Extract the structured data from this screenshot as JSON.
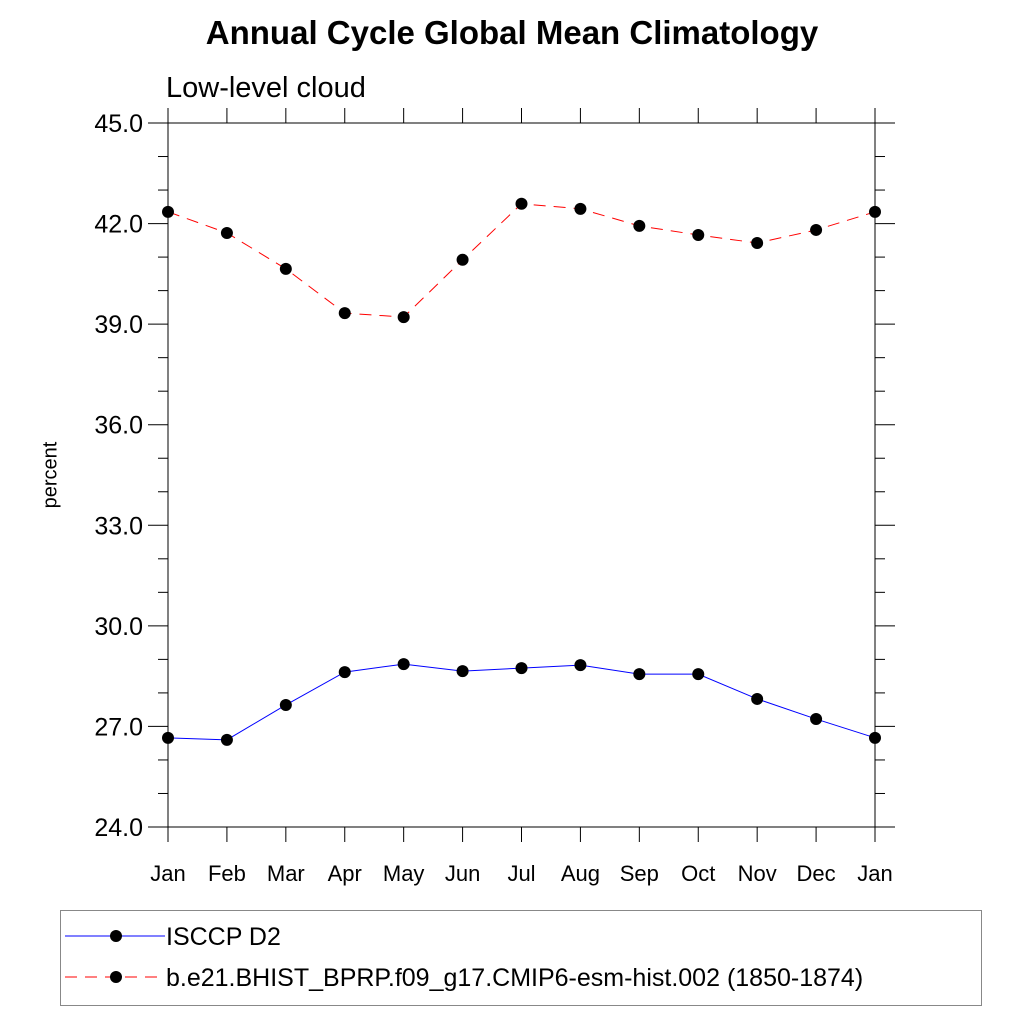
{
  "chart_data": {
    "type": "line",
    "title": "Annual Cycle Global Mean Climatology",
    "subtitle": "Low-level cloud",
    "xlabel": "",
    "ylabel": "percent",
    "categories": [
      "Jan",
      "Feb",
      "Mar",
      "Apr",
      "May",
      "Jun",
      "Jul",
      "Aug",
      "Sep",
      "Oct",
      "Nov",
      "Dec",
      "Jan"
    ],
    "ylim": [
      24.0,
      45.0
    ],
    "yticks": [
      "24.0",
      "27.0",
      "30.0",
      "33.0",
      "36.0",
      "39.0",
      "42.0",
      "45.0"
    ],
    "grid": false,
    "legend_placement": "bottom",
    "series": [
      {
        "name": "ISCCP D2",
        "color": "#0000ff",
        "dash": "solid",
        "values": [
          26.66,
          26.6,
          27.64,
          28.62,
          28.86,
          28.65,
          28.74,
          28.83,
          28.56,
          28.56,
          27.82,
          27.22,
          26.66
        ]
      },
      {
        "name": "b.e21.BHIST_BPRP.f09_g17.CMIP6-esm-hist.002 (1850-1874)",
        "color": "#ff0000",
        "dash": "dashed",
        "values": [
          42.35,
          41.72,
          40.65,
          39.33,
          39.21,
          40.92,
          42.59,
          42.44,
          41.93,
          41.66,
          41.42,
          41.81,
          42.35
        ]
      }
    ]
  }
}
